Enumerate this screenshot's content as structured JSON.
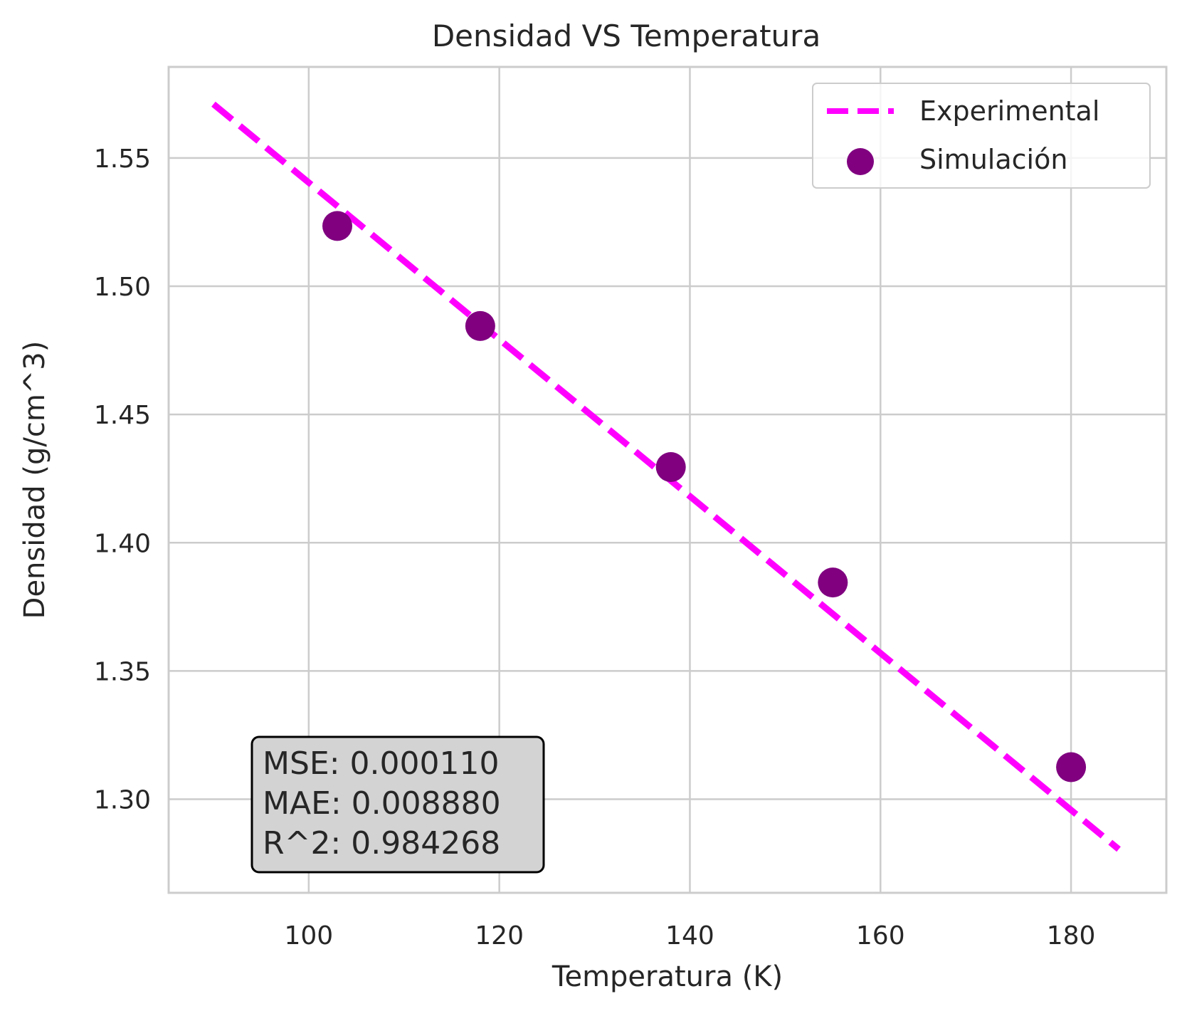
{
  "chart_data": {
    "type": "scatter",
    "title": "Densidad VS Temperatura",
    "xlabel": "Temperatura (K)",
    "ylabel": "Densidad (g/cm^3)",
    "xlim": [
      85.3,
      190.0
    ],
    "ylim": [
      1.2635,
      1.5855
    ],
    "xticks": [
      100,
      120,
      140,
      160,
      180
    ],
    "xtick_labels": [
      "100",
      "120",
      "140",
      "160",
      "180"
    ],
    "yticks": [
      1.3,
      1.35,
      1.4,
      1.45,
      1.5,
      1.55
    ],
    "ytick_labels": [
      "1.30",
      "1.35",
      "1.40",
      "1.45",
      "1.50",
      "1.55"
    ],
    "grid": true,
    "legend_position": "upper right",
    "series": [
      {
        "name": "Experimental",
        "kind": "line",
        "style": "dashed",
        "color": "#ff00ff",
        "x": [
          90,
          185
        ],
        "y": [
          1.571,
          1.2805
        ]
      },
      {
        "name": "Simulación",
        "kind": "scatter",
        "color": "#800080",
        "x": [
          103,
          118,
          138,
          155,
          180
        ],
        "y": [
          1.5235,
          1.4845,
          1.4295,
          1.3845,
          1.3125
        ]
      }
    ],
    "annotation": {
      "lines": [
        "MSE: 0.000110",
        "MAE: 0.008880",
        "R^2: 0.984268"
      ],
      "background": "#d3d3d3"
    }
  }
}
